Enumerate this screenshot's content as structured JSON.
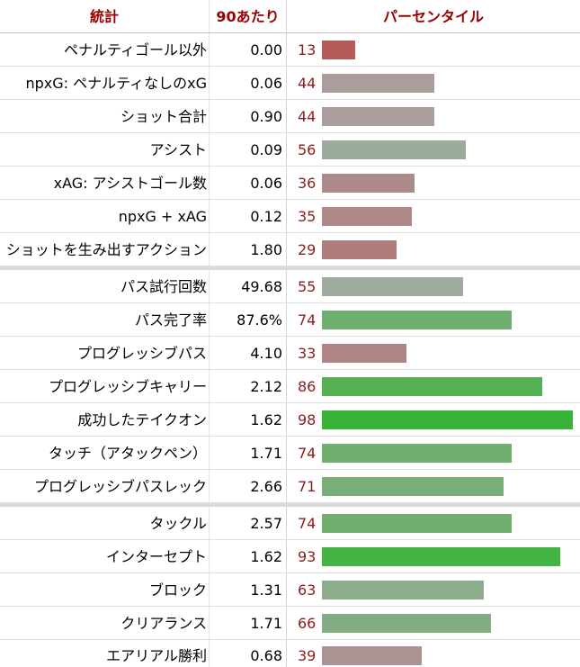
{
  "colors": {
    "header_text": "#990000",
    "percentile_text": "#8b1c1c",
    "bar_low": "#b93c3c",
    "bar_mid": "#aaaaaa",
    "bar_high": "#32b432"
  },
  "chart_data": {
    "type": "bar",
    "orientation": "horizontal",
    "xlim": [
      0,
      100
    ],
    "headers": {
      "stat": "統計",
      "per90": "90あたり",
      "percentile": "パーセンタイル"
    },
    "sections": [
      {
        "rows": [
          {
            "stat": "ペナルティゴール以外",
            "per90": "0.00",
            "percentile": 13
          },
          {
            "stat": "npxG: ペナルティなしのxG",
            "per90": "0.06",
            "percentile": 44
          },
          {
            "stat": "ショット合計",
            "per90": "0.90",
            "percentile": 44
          },
          {
            "stat": "アシスト",
            "per90": "0.09",
            "percentile": 56
          },
          {
            "stat": "xAG: アシストゴール数",
            "per90": "0.06",
            "percentile": 36
          },
          {
            "stat": "npxG + xAG",
            "per90": "0.12",
            "percentile": 35
          },
          {
            "stat": "ショットを生み出すアクション",
            "per90": "1.80",
            "percentile": 29
          }
        ]
      },
      {
        "rows": [
          {
            "stat": "パス試行回数",
            "per90": "49.68",
            "percentile": 55
          },
          {
            "stat": "パス完了率",
            "per90": "87.6%",
            "percentile": 74
          },
          {
            "stat": "プログレッシブパス",
            "per90": "4.10",
            "percentile": 33
          },
          {
            "stat": "プログレッシブキャリー",
            "per90": "2.12",
            "percentile": 86
          },
          {
            "stat": "成功したテイクオン",
            "per90": "1.62",
            "percentile": 98
          },
          {
            "stat": "タッチ（アタックペン）",
            "per90": "1.71",
            "percentile": 74
          },
          {
            "stat": "プログレッシブパスレック",
            "per90": "2.66",
            "percentile": 71
          }
        ]
      },
      {
        "rows": [
          {
            "stat": "タックル",
            "per90": "2.57",
            "percentile": 74
          },
          {
            "stat": "インターセプト",
            "per90": "1.62",
            "percentile": 93
          },
          {
            "stat": "ブロック",
            "per90": "1.31",
            "percentile": 63
          },
          {
            "stat": "クリアランス",
            "per90": "1.71",
            "percentile": 66
          },
          {
            "stat": "エアリアル勝利",
            "per90": "0.68",
            "percentile": 39
          }
        ]
      }
    ]
  }
}
